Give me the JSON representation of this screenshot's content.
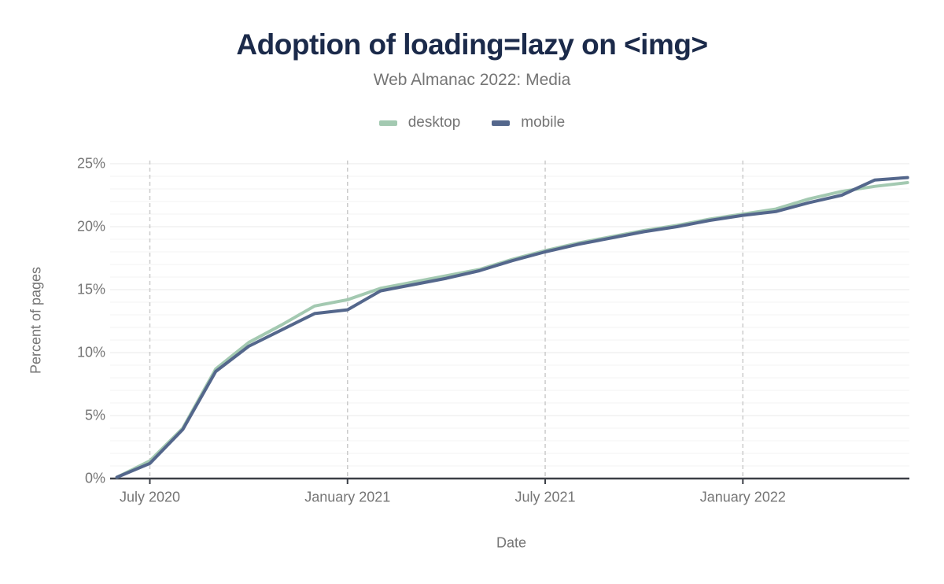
{
  "header": {
    "title": "Adoption of loading=lazy on <img>",
    "subtitle": "Web Almanac 2022: Media"
  },
  "chart_data": {
    "type": "line",
    "title": "Adoption of loading=lazy on <img>",
    "subtitle": "Web Almanac 2022: Media",
    "xlabel": "Date",
    "ylabel": "Percent of pages",
    "ylim": [
      0,
      25
    ],
    "grid": {
      "horizontal_minor_step_pct": 1,
      "horizontal_major_step_pct": 5,
      "vertical": "dashed at labeled x ticks"
    },
    "legend_position": "top",
    "x": [
      "2020-06",
      "2020-07",
      "2020-08",
      "2020-09",
      "2020-10",
      "2020-11",
      "2020-12",
      "2021-01",
      "2021-02",
      "2021-03",
      "2021-04",
      "2021-05",
      "2021-06",
      "2021-07",
      "2021-08",
      "2021-09",
      "2021-10",
      "2021-11",
      "2021-12",
      "2022-01",
      "2022-02",
      "2022-03",
      "2022-04",
      "2022-05",
      "2022-06"
    ],
    "series": [
      {
        "name": "desktop",
        "color": "#a3c9b1",
        "values": [
          0.1,
          1.4,
          4.0,
          8.7,
          10.8,
          12.2,
          13.7,
          14.2,
          15.1,
          15.6,
          16.1,
          16.6,
          17.4,
          18.1,
          18.7,
          19.2,
          19.7,
          20.1,
          20.6,
          21.0,
          21.4,
          22.2,
          22.8,
          23.2,
          23.5
        ]
      },
      {
        "name": "mobile",
        "color": "#54678c",
        "values": [
          0.1,
          1.2,
          3.9,
          8.5,
          10.5,
          11.8,
          13.1,
          13.4,
          14.9,
          15.4,
          15.9,
          16.5,
          17.3,
          18.0,
          18.6,
          19.1,
          19.6,
          20.0,
          20.5,
          20.9,
          21.2,
          21.9,
          22.5,
          23.7,
          23.9
        ]
      }
    ],
    "yticks": [
      {
        "value": 0,
        "label": "0%"
      },
      {
        "value": 5,
        "label": "5%"
      },
      {
        "value": 10,
        "label": "10%"
      },
      {
        "value": 15,
        "label": "15%"
      },
      {
        "value": 20,
        "label": "20%"
      },
      {
        "value": 25,
        "label": "25%"
      }
    ],
    "xticks": [
      {
        "date": "2020-07",
        "label": "July 2020"
      },
      {
        "date": "2021-01",
        "label": "January 2021"
      },
      {
        "date": "2021-07",
        "label": "July 2021"
      },
      {
        "date": "2022-01",
        "label": "January 2022"
      }
    ],
    "colors": {
      "title": "#1b2a4a",
      "subtitle": "#757575",
      "axis_labels": "#757575",
      "axis_line": "#3b3f46",
      "grid_minor": "#f3f3f3",
      "grid_major": "#e9e9e9",
      "grid_vertical_dashed": "#cbcbcb"
    }
  }
}
